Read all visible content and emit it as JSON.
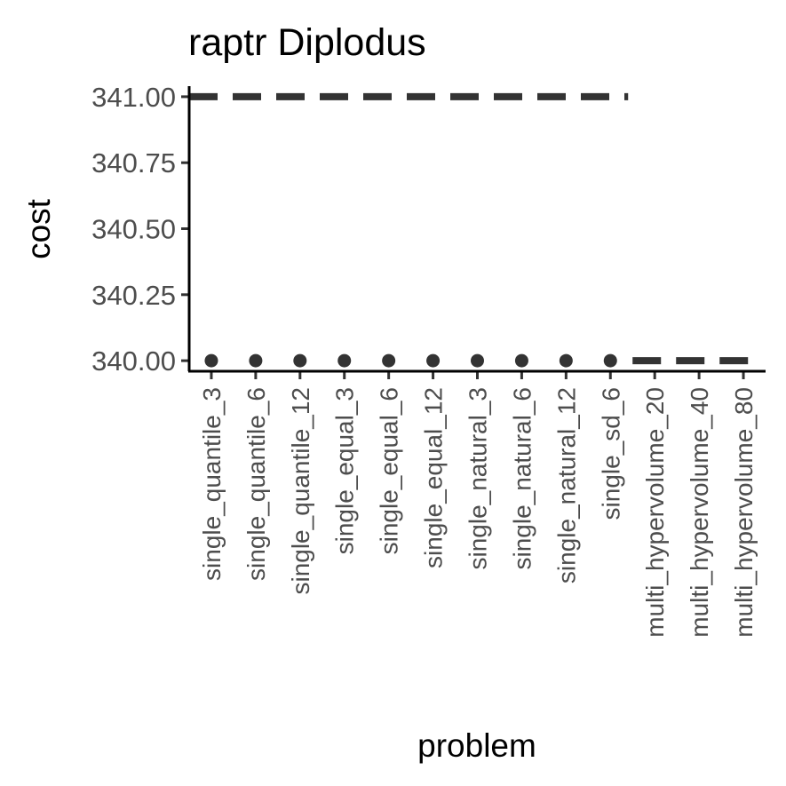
{
  "chart_data": {
    "type": "scatter",
    "title": "raptr Diplodus",
    "xlabel": "problem",
    "ylabel": "cost",
    "categories": [
      "single_quantile_3",
      "single_quantile_6",
      "single_quantile_12",
      "single_equal_3",
      "single_equal_6",
      "single_equal_12",
      "single_natural_3",
      "single_natural_6",
      "single_natural_12",
      "single_sd_6",
      "multi_hypervolume_20",
      "multi_hypervolume_40",
      "multi_hypervolume_80"
    ],
    "ylim": [
      339.96,
      341.04
    ],
    "yticks": [
      340.0,
      340.25,
      340.5,
      340.75,
      341.0
    ],
    "ytick_labels": [
      "340.00",
      "340.25",
      "340.50",
      "340.75",
      "341.00"
    ],
    "grid": false,
    "legend": "none",
    "points": {
      "categories": [
        "single_quantile_3",
        "single_quantile_6",
        "single_quantile_12",
        "single_equal_3",
        "single_equal_6",
        "single_equal_12",
        "single_natural_3",
        "single_natural_6",
        "single_natural_12",
        "single_sd_6"
      ],
      "values": [
        340,
        340,
        340,
        340,
        340,
        340,
        340,
        340,
        340,
        340
      ]
    },
    "reference_lines": [
      {
        "from": "single_quantile_3",
        "to": "single_sd_6",
        "y": 341,
        "style": "dashed"
      },
      {
        "from": "multi_hypervolume_20",
        "to": "multi_hypervolume_80",
        "y": 340,
        "style": "dashed"
      }
    ],
    "colors": {
      "marks": "#333333",
      "axis": "#000000",
      "tick_text": "#4d4d4d"
    }
  }
}
